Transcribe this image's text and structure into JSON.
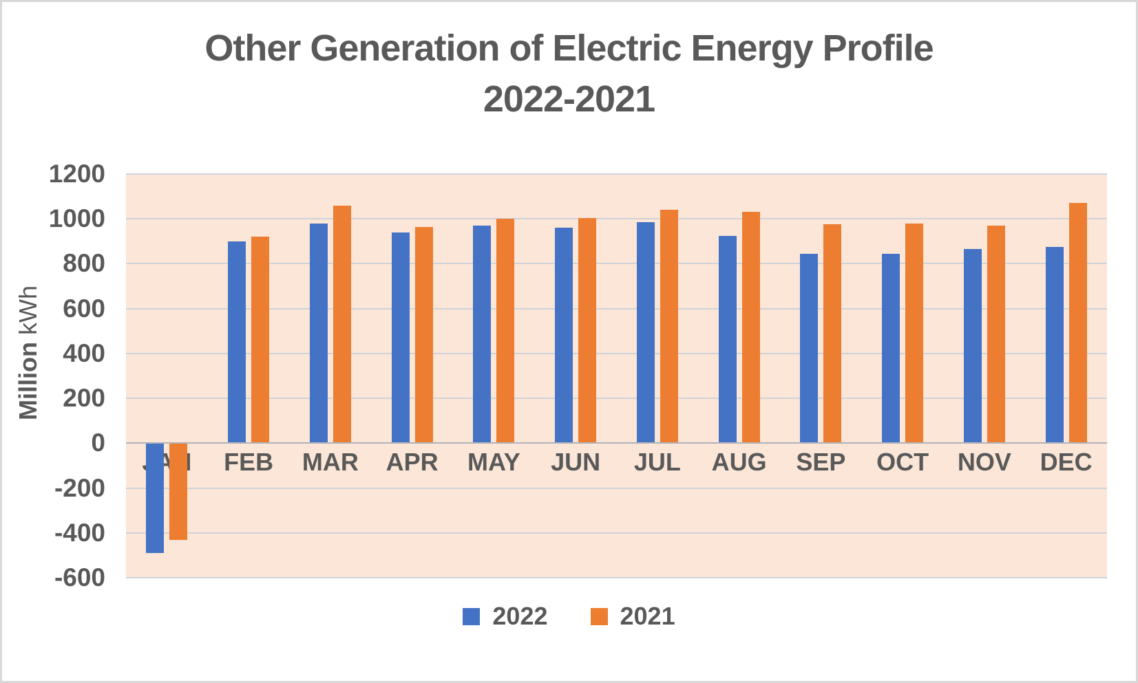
{
  "frame": {
    "background": "#ffffff",
    "border_color": "#d8d8d8"
  },
  "title": {
    "line1": "Other Generation of Electric Energy Profile",
    "line2": "2022-2021",
    "color": "#595959"
  },
  "chart_data": {
    "type": "bar",
    "title": "Other Generation of Electric Energy Profile 2022-2021",
    "categories": [
      "JAN",
      "FEB",
      "MAR",
      "APR",
      "MAY",
      "JUN",
      "JUL",
      "AUG",
      "SEP",
      "OCT",
      "NOV",
      "DEC"
    ],
    "series": [
      {
        "name": "2022",
        "color": "#4472C4",
        "values": [
          -490,
          900,
          980,
          940,
          970,
          960,
          985,
          925,
          845,
          845,
          865,
          875
        ]
      },
      {
        "name": "2021",
        "color": "#ED7D31",
        "values": [
          -430,
          920,
          1060,
          965,
          1000,
          1005,
          1040,
          1030,
          975,
          980,
          970,
          1070
        ]
      }
    ],
    "xlabel": "",
    "ylabel": "Million kWh",
    "ylim": [
      -600,
      1200
    ],
    "yticks": [
      1200,
      1000,
      800,
      600,
      400,
      200,
      0,
      -200,
      -400,
      -600
    ],
    "grid": "horizontal-only",
    "legend_position": "bottom",
    "plot_bg_color": "#FBE6D8",
    "gridline_color": "#CFD2D9",
    "zero_axis_color": "#AFB3BA",
    "text_color": "#595959"
  }
}
